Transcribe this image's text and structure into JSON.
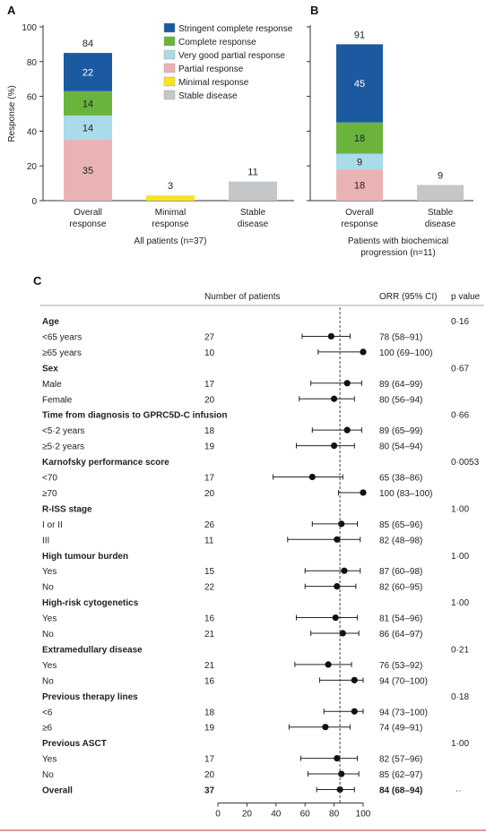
{
  "colors": {
    "stringent_cr": "#1b5aa0",
    "cr": "#6ab43e",
    "vgpr": "#a9dbe8",
    "pr": "#eab3b3",
    "minimal": "#f7e41f",
    "stable": "#c3c7c9",
    "axis": "#333333",
    "refline": "#444444",
    "rule": "#c0392b"
  },
  "chart_data": [
    {
      "panel": "A",
      "type": "bar",
      "stacked": true,
      "ylabel": "Response (%)",
      "ylim": [
        0,
        100
      ],
      "yticks": [
        0,
        20,
        40,
        60,
        80,
        100
      ],
      "categories": [
        "Overall response",
        "Minimal response",
        "Stable disease"
      ],
      "category_label_lines": [
        [
          "Overall",
          "response"
        ],
        [
          "Minimal",
          "response"
        ],
        [
          "Stable",
          "disease"
        ]
      ],
      "xlabel": "All patients (n=37)",
      "series": [
        {
          "name": "Partial response",
          "color_key": "pr",
          "values": [
            35,
            0,
            0
          ]
        },
        {
          "name": "Very good partial response",
          "color_key": "vgpr",
          "values": [
            14,
            0,
            0
          ]
        },
        {
          "name": "Complete response",
          "color_key": "cr",
          "values": [
            14,
            0,
            0
          ]
        },
        {
          "name": "Stringent complete response",
          "color_key": "stringent_cr",
          "values": [
            22,
            0,
            0
          ]
        },
        {
          "name": "Minimal response",
          "color_key": "minimal",
          "values": [
            0,
            3,
            0
          ]
        },
        {
          "name": "Stable disease",
          "color_key": "stable",
          "values": [
            0,
            0,
            11
          ]
        }
      ],
      "segment_labels": [
        {
          "category": 0,
          "series": 0,
          "text": "35"
        },
        {
          "category": 0,
          "series": 1,
          "text": "14"
        },
        {
          "category": 0,
          "series": 2,
          "text": "14"
        },
        {
          "category": 0,
          "series": 3,
          "text": "22"
        }
      ],
      "totals": [
        "84",
        "3",
        "11"
      ],
      "legend": {
        "placement": "top-right",
        "entries": [
          {
            "label": "Stringent complete response",
            "color_key": "stringent_cr"
          },
          {
            "label": "Complete response",
            "color_key": "cr"
          },
          {
            "label": "Very good partial response",
            "color_key": "vgpr"
          },
          {
            "label": "Partial response",
            "color_key": "pr"
          },
          {
            "label": "Minimal response",
            "color_key": "minimal"
          },
          {
            "label": "Stable disease",
            "color_key": "stable"
          }
        ]
      }
    },
    {
      "panel": "B",
      "type": "bar",
      "stacked": true,
      "ylim": [
        0,
        100
      ],
      "categories": [
        "Overall response",
        "Stable disease"
      ],
      "category_label_lines": [
        [
          "Overall",
          "response"
        ],
        [
          "Stable",
          "disease"
        ]
      ],
      "xlabel_lines": [
        "Patients with biochemical",
        "progression (n=11)"
      ],
      "series": [
        {
          "name": "Partial response",
          "color_key": "pr",
          "values": [
            18,
            0
          ]
        },
        {
          "name": "Very good partial response",
          "color_key": "vgpr",
          "values": [
            9,
            0
          ]
        },
        {
          "name": "Complete response",
          "color_key": "cr",
          "values": [
            18,
            0
          ]
        },
        {
          "name": "Stringent complete response",
          "color_key": "stringent_cr",
          "values": [
            45,
            0
          ]
        },
        {
          "name": "Stable disease",
          "color_key": "stable",
          "values": [
            0,
            9
          ]
        }
      ],
      "segment_labels": [
        {
          "category": 0,
          "series": 0,
          "text": "18"
        },
        {
          "category": 0,
          "series": 1,
          "text": "9"
        },
        {
          "category": 0,
          "series": 2,
          "text": "18"
        },
        {
          "category": 0,
          "series": 3,
          "text": "45"
        }
      ],
      "totals": [
        "91",
        "9"
      ]
    },
    {
      "panel": "C",
      "type": "forest",
      "columns": {
        "n": "Number of patients",
        "orr": "ORR (95% CI)",
        "p": "p value"
      },
      "xlim": [
        0,
        100
      ],
      "xticks": [
        0,
        20,
        40,
        60,
        80,
        100
      ],
      "reference_line": 84,
      "rows": [
        {
          "kind": "group",
          "label": "Age",
          "p": "0·16"
        },
        {
          "kind": "item",
          "label": "<65 years",
          "n": "27",
          "orr": "78 (58–91)",
          "est": 78,
          "lo": 58,
          "hi": 91
        },
        {
          "kind": "item",
          "label": "≥65 years",
          "n": "10",
          "orr": "100 (69–100)",
          "est": 100,
          "lo": 69,
          "hi": 100
        },
        {
          "kind": "group",
          "label": "Sex",
          "p": "0·67"
        },
        {
          "kind": "item",
          "label": "Male",
          "n": "17",
          "orr": "89 (64–99)",
          "est": 89,
          "lo": 64,
          "hi": 99
        },
        {
          "kind": "item",
          "label": "Female",
          "n": "20",
          "orr": "80 (56–94)",
          "est": 80,
          "lo": 56,
          "hi": 94
        },
        {
          "kind": "group",
          "label": "Time from diagnosis to GPRC5D-C infusion",
          "p": "0·66"
        },
        {
          "kind": "item",
          "label": "<5·2 years",
          "n": "18",
          "orr": "89 (65–99)",
          "est": 89,
          "lo": 65,
          "hi": 99
        },
        {
          "kind": "item",
          "label": "≥5·2 years",
          "n": "19",
          "orr": "80 (54–94)",
          "est": 80,
          "lo": 54,
          "hi": 94
        },
        {
          "kind": "group",
          "label": "Karnofsky performance score",
          "p": "0·0053"
        },
        {
          "kind": "item",
          "label": "<70",
          "n": "17",
          "orr": "65 (38–86)",
          "est": 65,
          "lo": 38,
          "hi": 86
        },
        {
          "kind": "item",
          "label": "≥70",
          "n": "20",
          "orr": "100 (83–100)",
          "est": 100,
          "lo": 83,
          "hi": 100
        },
        {
          "kind": "group",
          "label": "R-ISS stage",
          "p": "1·00"
        },
        {
          "kind": "item",
          "label": "I or II",
          "n": "26",
          "orr": "85 (65–96)",
          "est": 85,
          "lo": 65,
          "hi": 96
        },
        {
          "kind": "item",
          "label": "III",
          "n": "11",
          "orr": "82 (48–98)",
          "est": 82,
          "lo": 48,
          "hi": 98
        },
        {
          "kind": "group",
          "label": "High tumour burden",
          "p": "1·00"
        },
        {
          "kind": "item",
          "label": "Yes",
          "n": "15",
          "orr": "87 (60–98)",
          "est": 87,
          "lo": 60,
          "hi": 98
        },
        {
          "kind": "item",
          "label": "No",
          "n": "22",
          "orr": "82 (60–95)",
          "est": 82,
          "lo": 60,
          "hi": 95
        },
        {
          "kind": "group",
          "label": "High-risk cytogenetics",
          "p": "1·00"
        },
        {
          "kind": "item",
          "label": "Yes",
          "n": "16",
          "orr": "81 (54–96)",
          "est": 81,
          "lo": 54,
          "hi": 96
        },
        {
          "kind": "item",
          "label": "No",
          "n": "21",
          "orr": "86 (64–97)",
          "est": 86,
          "lo": 64,
          "hi": 97
        },
        {
          "kind": "group",
          "label": "Extramedullary disease",
          "p": "0·21"
        },
        {
          "kind": "item",
          "label": "Yes",
          "n": "21",
          "orr": "76 (53–92)",
          "est": 76,
          "lo": 53,
          "hi": 92
        },
        {
          "kind": "item",
          "label": "No",
          "n": "16",
          "orr": "94 (70–100)",
          "est": 94,
          "lo": 70,
          "hi": 100
        },
        {
          "kind": "group",
          "label": "Previous therapy lines",
          "p": "0·18"
        },
        {
          "kind": "item",
          "label": "<6",
          "n": "18",
          "orr": "94 (73–100)",
          "est": 94,
          "lo": 73,
          "hi": 100
        },
        {
          "kind": "item",
          "label": "≥6",
          "n": "19",
          "orr": "74 (49–91)",
          "est": 74,
          "lo": 49,
          "hi": 91
        },
        {
          "kind": "group",
          "label": "Previous ASCT",
          "p": "1·00"
        },
        {
          "kind": "item",
          "label": "Yes",
          "n": "17",
          "orr": "82 (57–96)",
          "est": 82,
          "lo": 57,
          "hi": 96
        },
        {
          "kind": "item",
          "label": "No",
          "n": "20",
          "orr": "85 (62–97)",
          "est": 85,
          "lo": 62,
          "hi": 97
        },
        {
          "kind": "overall",
          "label": "Overall",
          "n": "37",
          "orr": "84 (68–94)",
          "est": 84,
          "lo": 68,
          "hi": 94,
          "p": "··"
        }
      ]
    }
  ]
}
